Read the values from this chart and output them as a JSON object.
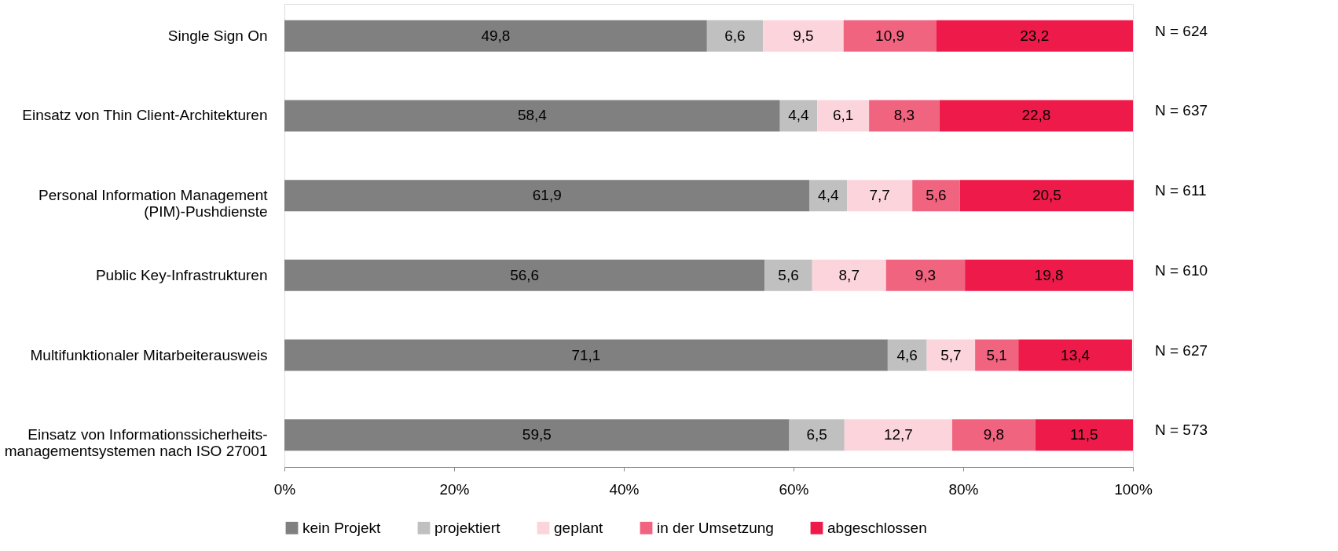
{
  "chart_data": {
    "type": "bar",
    "orientation": "horizontal",
    "stacked": true,
    "categories": [
      "Single Sign On",
      "Einsatz von Thin Client-Architekturen",
      "Personal Information Management\n(PIM)-Pushdienste",
      "Public Key-Infrastrukturen",
      "Multifunktionaler Mitarbeiterausweis",
      "Einsatz von Informationssicherheits-\nmanagementsystemen nach ISO 27001"
    ],
    "series": [
      {
        "name": "kein Projekt",
        "color": "#808080",
        "values": [
          49.8,
          58.4,
          61.9,
          56.6,
          71.1,
          59.5
        ],
        "value_labels": [
          "49,8",
          "58,4",
          "61,9",
          "56,6",
          "71,1",
          "59,5"
        ]
      },
      {
        "name": "projektiert",
        "color": "#c0c0c0",
        "values": [
          6.6,
          4.4,
          4.4,
          5.6,
          4.6,
          6.5
        ],
        "value_labels": [
          "6,6",
          "4,4",
          "4,4",
          "5,6",
          "4,6",
          "6,5"
        ]
      },
      {
        "name": "geplant",
        "color": "#fcd5dc",
        "values": [
          9.5,
          6.1,
          7.7,
          8.7,
          5.7,
          12.7
        ],
        "value_labels": [
          "9,5",
          "6,1",
          "7,7",
          "8,7",
          "5,7",
          "12,7"
        ]
      },
      {
        "name": "in der Umsetzung",
        "color": "#f06480",
        "values": [
          10.9,
          8.3,
          5.6,
          9.3,
          5.1,
          9.8
        ],
        "value_labels": [
          "10,9",
          "8,3",
          "5,6",
          "9,3",
          "5,1",
          "9,8"
        ]
      },
      {
        "name": "abgeschlossen",
        "color": "#ee1b4a",
        "values": [
          23.2,
          22.8,
          20.5,
          19.8,
          13.4,
          11.5
        ],
        "value_labels": [
          "23,2",
          "22,8",
          "20,5",
          "19,8",
          "13,4",
          "11,5"
        ]
      }
    ],
    "xlim": [
      0,
      100
    ],
    "xticks": [
      {
        "value": 0,
        "label": "0%"
      },
      {
        "value": 20,
        "label": "20%"
      },
      {
        "value": 40,
        "label": "40%"
      },
      {
        "value": 60,
        "label": "60%"
      },
      {
        "value": 80,
        "label": "80%"
      },
      {
        "value": 100,
        "label": "100%"
      }
    ],
    "grid": false,
    "legend": "bottom",
    "annotations": [
      "N = 624",
      "N = 637",
      "N = 611",
      "N = 610",
      "N = 627",
      "N = 573"
    ]
  }
}
